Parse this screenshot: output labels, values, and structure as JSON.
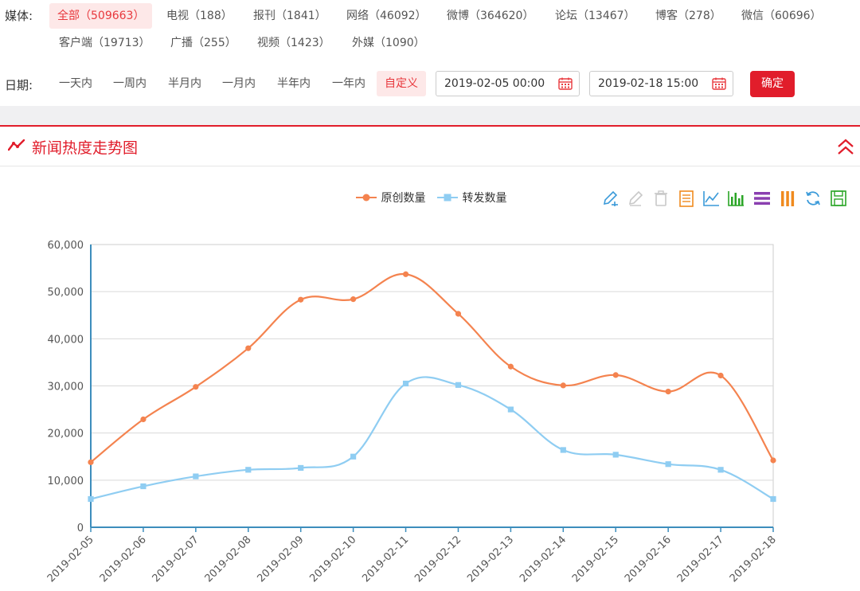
{
  "filters": {
    "media_label": "媒体:",
    "media_options": [
      {
        "label": "全部（509663）",
        "active": true
      },
      {
        "label": "电视（188）",
        "active": false
      },
      {
        "label": "报刊（1841）",
        "active": false
      },
      {
        "label": "网络（46092）",
        "active": false
      },
      {
        "label": "微博（364620）",
        "active": false
      },
      {
        "label": "论坛（13467）",
        "active": false
      },
      {
        "label": "博客（278）",
        "active": false
      },
      {
        "label": "微信（60696）",
        "active": false
      },
      {
        "label": "客户端（19713）",
        "active": false
      },
      {
        "label": "广播（255）",
        "active": false
      },
      {
        "label": "视频（1423）",
        "active": false
      },
      {
        "label": "外媒（1090）",
        "active": false
      }
    ],
    "date_label": "日期:",
    "date_options": [
      {
        "label": "一天内",
        "active": false
      },
      {
        "label": "一周内",
        "active": false
      },
      {
        "label": "半月内",
        "active": false
      },
      {
        "label": "一月内",
        "active": false
      },
      {
        "label": "半年内",
        "active": false
      },
      {
        "label": "一年内",
        "active": false
      },
      {
        "label": "自定义",
        "active": true
      }
    ],
    "start_date": "2019-02-05 00:00",
    "end_date": "2019-02-18 15:00",
    "confirm_label": "确定"
  },
  "panel": {
    "title": "新闻热度走势图",
    "title_icon": "trend-line-icon",
    "collapse_icon": "double-chevron-up-icon"
  },
  "toolbar": {
    "tools": [
      "pencil-add-icon",
      "pencil-icon",
      "trash-icon",
      "data-view-icon",
      "line-chart-icon",
      "bar-chart-icon",
      "stack-icon",
      "tiled-icon",
      "refresh-icon",
      "save-icon"
    ]
  },
  "colors": {
    "accent": "#e11d2b",
    "series_original": "#f4834f",
    "series_repost": "#8fcdf2"
  },
  "chart_data": {
    "type": "line",
    "smooth": true,
    "legend_position": "top-center",
    "grid": true,
    "x": [
      "2019-02-05",
      "2019-02-06",
      "2019-02-07",
      "2019-02-08",
      "2019-02-09",
      "2019-02-10",
      "2019-02-11",
      "2019-02-12",
      "2019-02-13",
      "2019-02-14",
      "2019-02-15",
      "2019-02-16",
      "2019-02-17",
      "2019-02-18"
    ],
    "ylim": [
      0,
      60000
    ],
    "yticks": [
      "0",
      "10,000",
      "20,000",
      "30,000",
      "40,000",
      "50,000",
      "60,000"
    ],
    "series": [
      {
        "name": "原创数量",
        "marker": "circle",
        "values": [
          13800,
          22900,
          29800,
          38000,
          48300,
          48400,
          53700,
          45300,
          34100,
          30100,
          32300,
          28800,
          32200,
          14200
        ]
      },
      {
        "name": "转发数量",
        "marker": "square",
        "values": [
          6000,
          8700,
          10800,
          12200,
          12600,
          15000,
          30500,
          30200,
          25000,
          16400,
          15400,
          13400,
          12200,
          6000
        ]
      }
    ]
  }
}
